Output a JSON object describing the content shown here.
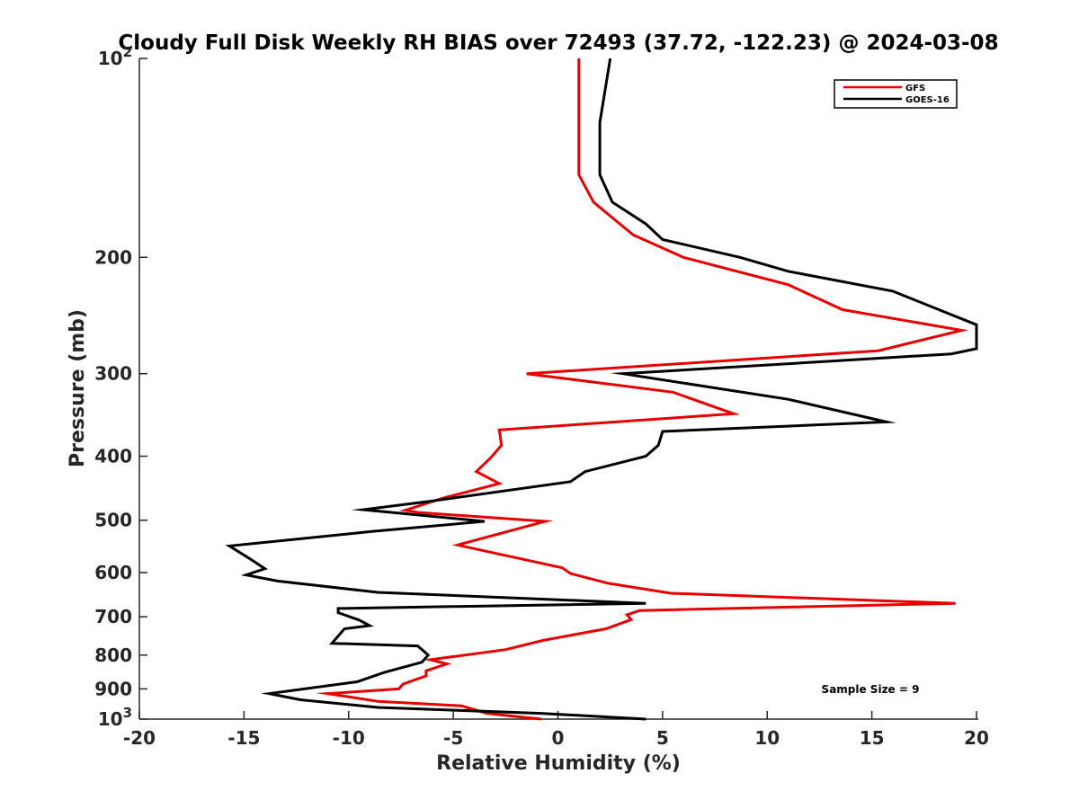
{
  "chart_data": {
    "type": "line",
    "title": "Cloudy Full Disk Weekly RH BIAS over 72493 (37.72, -122.23) @ 2024-03-08",
    "xlabel": "Relative Humidity (%)",
    "ylabel": "Pressure (mb)",
    "xlim": [
      -20,
      20
    ],
    "ylim": [
      100,
      1000
    ],
    "y_scale": "log",
    "y_reversed": true,
    "x_ticks": [
      "-20",
      "-15",
      "-10",
      "-5",
      "0",
      "5",
      "10",
      "15",
      "20"
    ],
    "y_ticks": [
      {
        "value": 100,
        "base": "10",
        "exp": "2"
      },
      {
        "value": 200,
        "label": "200"
      },
      {
        "value": 300,
        "label": "300"
      },
      {
        "value": 400,
        "label": "400"
      },
      {
        "value": 500,
        "label": "500"
      },
      {
        "value": 600,
        "label": "600"
      },
      {
        "value": 700,
        "label": "700"
      },
      {
        "value": 800,
        "label": "800"
      },
      {
        "value": 900,
        "label": "900"
      },
      {
        "value": 1000,
        "base": "10",
        "exp": "3"
      }
    ],
    "grid": false,
    "legend_position": "top-right",
    "annotation": "Sample Size = 9",
    "series": [
      {
        "name": "GFS",
        "color": "#e60000",
        "points": [
          [
            1.0,
            100
          ],
          [
            1.0,
            150
          ],
          [
            1.7,
            165
          ],
          [
            3.6,
            185
          ],
          [
            6.0,
            200
          ],
          [
            11.0,
            220
          ],
          [
            13.6,
            240
          ],
          [
            19.3,
            258
          ],
          [
            15.3,
            277
          ],
          [
            -1.5,
            300
          ],
          [
            5.5,
            320
          ],
          [
            8.4,
            345
          ],
          [
            -2.8,
            365
          ],
          [
            -2.7,
            385
          ],
          [
            -3.2,
            402
          ],
          [
            -3.9,
            422
          ],
          [
            -2.8,
            440
          ],
          [
            -5.5,
            463
          ],
          [
            -7.3,
            483
          ],
          [
            -6.6,
            487
          ],
          [
            -0.6,
            502
          ],
          [
            -4.8,
            545
          ],
          [
            0.2,
            590
          ],
          [
            0.6,
            602
          ],
          [
            2.4,
            623
          ],
          [
            5.4,
            645
          ],
          [
            19.0,
            668
          ],
          [
            3.9,
            685
          ],
          [
            3.3,
            695
          ],
          [
            3.5,
            707
          ],
          [
            2.3,
            730
          ],
          [
            -0.7,
            760
          ],
          [
            -2.5,
            785
          ],
          [
            -6.1,
            813
          ],
          [
            -5.3,
            825
          ],
          [
            -6.3,
            845
          ],
          [
            -6.3,
            860
          ],
          [
            -7.4,
            885
          ],
          [
            -7.6,
            900
          ],
          [
            -11.0,
            915
          ],
          [
            -8.6,
            940
          ],
          [
            -4.6,
            955
          ],
          [
            -3.4,
            980
          ],
          [
            -0.8,
            1000
          ]
        ]
      },
      {
        "name": "GOES-16",
        "color": "#000000",
        "points": [
          [
            2.5,
            100
          ],
          [
            2.0,
            125
          ],
          [
            2.0,
            150
          ],
          [
            2.6,
            165
          ],
          [
            4.2,
            178
          ],
          [
            5.0,
            188
          ],
          [
            8.7,
            200
          ],
          [
            11.0,
            210
          ],
          [
            16.0,
            225
          ],
          [
            20.0,
            253
          ],
          [
            20.0,
            275
          ],
          [
            18.8,
            280
          ],
          [
            3.1,
            300
          ],
          [
            11.0,
            328
          ],
          [
            15.7,
            355
          ],
          [
            5.0,
            367
          ],
          [
            4.8,
            385
          ],
          [
            4.2,
            400
          ],
          [
            1.3,
            422
          ],
          [
            0.6,
            437
          ],
          [
            -6.1,
            468
          ],
          [
            -9.3,
            482
          ],
          [
            -3.5,
            502
          ],
          [
            -8.9,
            520
          ],
          [
            -15.7,
            547
          ],
          [
            -14.6,
            575
          ],
          [
            -14.0,
            592
          ],
          [
            -14.9,
            605
          ],
          [
            -13.4,
            618
          ],
          [
            -8.6,
            643
          ],
          [
            4.2,
            668
          ],
          [
            -10.5,
            680
          ],
          [
            -10.5,
            690
          ],
          [
            -9.5,
            708
          ],
          [
            -9.0,
            722
          ],
          [
            -10.2,
            730
          ],
          [
            -10.8,
            768
          ],
          [
            -6.7,
            775
          ],
          [
            -6.2,
            800
          ],
          [
            -6.5,
            820
          ],
          [
            -8.3,
            850
          ],
          [
            -9.6,
            878
          ],
          [
            -13.8,
            915
          ],
          [
            -12.3,
            935
          ],
          [
            -8.6,
            960
          ],
          [
            -0.8,
            980
          ],
          [
            4.2,
            1000
          ]
        ]
      }
    ]
  }
}
